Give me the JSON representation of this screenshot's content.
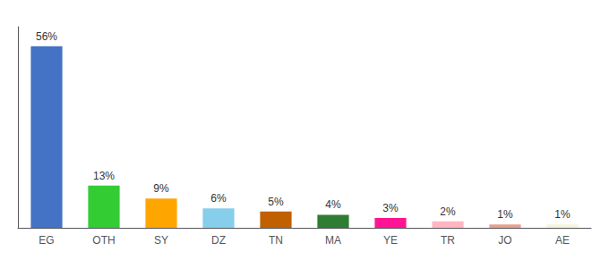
{
  "chart_data": {
    "type": "bar",
    "categories": [
      "EG",
      "OTH",
      "SY",
      "DZ",
      "TN",
      "MA",
      "YE",
      "TR",
      "JO",
      "AE"
    ],
    "values": [
      56,
      13,
      9,
      6,
      5,
      4,
      3,
      2,
      1,
      1
    ],
    "value_labels": [
      "56%",
      "13%",
      "9%",
      "6%",
      "5%",
      "4%",
      "3%",
      "2%",
      "1%",
      "1%"
    ],
    "colors": [
      "#4472C4",
      "#33CC33",
      "#FFA500",
      "#87CEEB",
      "#C06000",
      "#2E7D32",
      "#FF1493",
      "#FFB6C1",
      "#E8A090",
      "#F5F5DC"
    ],
    "ylim": [
      0,
      62
    ],
    "data_labels": true,
    "tick_labels": "x",
    "grid": false
  }
}
